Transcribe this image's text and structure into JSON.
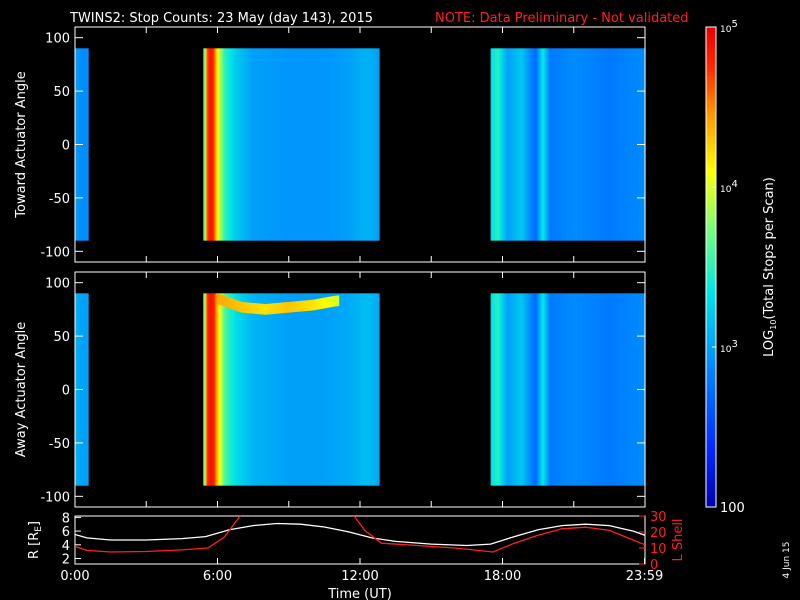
{
  "title": {
    "main": "TWINS2: Stop Counts: 23 May (day 143), 2015",
    "note": "NOTE: Data Preliminary - Not validated"
  },
  "stamp": "4 Jun 15",
  "colors": {
    "background": "#000000",
    "axis": "#ffffff",
    "note": "#ff2020",
    "r_line": "#ffffff",
    "lshell_line": "#ff2020"
  },
  "chart_data": [
    {
      "type": "heatmap",
      "panel": "toward",
      "ylabel": "Toward Actuator Angle",
      "ylim": [
        -110,
        110
      ],
      "yticks": [
        "100",
        "50",
        "0",
        "-50",
        "-100"
      ],
      "ytick_values": [
        100,
        50,
        0,
        -50,
        -100
      ],
      "xlim_hours": [
        0,
        24
      ],
      "segments_hours": [
        [
          0.0,
          0.55
        ],
        [
          5.4,
          12.8
        ],
        [
          17.5,
          24.0
        ]
      ],
      "angle_range": [
        -90,
        90
      ],
      "log_counts_profile": {
        "hours": [
          0.0,
          0.3,
          5.4,
          5.55,
          5.7,
          5.85,
          6.0,
          6.3,
          6.8,
          7.5,
          9.0,
          10.5,
          11.5,
          12.3,
          12.8,
          17.5,
          17.8,
          18.2,
          18.8,
          19.4,
          19.7,
          20.0,
          21.0,
          22.5,
          24.0
        ],
        "log10_counts": [
          3.0,
          2.9,
          3.2,
          4.6,
          4.9,
          4.7,
          4.1,
          3.5,
          3.2,
          3.0,
          2.95,
          2.95,
          3.0,
          3.1,
          3.0,
          3.3,
          3.5,
          3.0,
          3.2,
          2.7,
          3.4,
          2.8,
          2.9,
          2.8,
          2.9
        ]
      }
    },
    {
      "type": "heatmap",
      "panel": "away",
      "ylabel": "Away Actuator Angle",
      "ylim": [
        -110,
        110
      ],
      "yticks": [
        "100",
        "50",
        "0",
        "-50",
        "-100"
      ],
      "ytick_values": [
        100,
        50,
        0,
        -50,
        -100
      ],
      "xlim_hours": [
        0,
        24
      ],
      "segments_hours": [
        [
          0.0,
          0.55
        ],
        [
          5.4,
          12.8
        ],
        [
          17.5,
          24.0
        ]
      ],
      "angle_range": [
        -90,
        90
      ],
      "log_counts_profile": {
        "hours": [
          0.0,
          0.3,
          5.4,
          5.55,
          5.7,
          5.85,
          6.0,
          6.3,
          6.8,
          7.5,
          9.0,
          10.5,
          11.5,
          12.3,
          12.8,
          17.5,
          17.8,
          18.2,
          18.8,
          19.4,
          19.7,
          20.0,
          21.0,
          22.5,
          24.0
        ],
        "log10_counts": [
          3.1,
          3.0,
          3.3,
          4.7,
          4.9,
          4.8,
          4.3,
          3.6,
          3.3,
          3.1,
          3.0,
          3.0,
          3.05,
          3.15,
          3.05,
          3.3,
          3.5,
          3.0,
          3.2,
          2.7,
          3.4,
          2.8,
          2.9,
          2.8,
          2.9
        ]
      },
      "hot_band": {
        "hours": [
          6.0,
          7.0,
          8.0,
          9.0,
          10.0,
          11.0
        ],
        "angles": [
          88,
          80,
          78,
          80,
          82,
          86
        ],
        "log10_counts": [
          4.4,
          4.3,
          4.2,
          4.3,
          4.2,
          4.0
        ]
      }
    },
    {
      "type": "line",
      "panel": "orbit",
      "xlabel": "Time (UT)",
      "xticks": [
        "0:00",
        "6:00",
        "12:00",
        "18:00",
        "23:59"
      ],
      "xtick_values": [
        0,
        6,
        12,
        18,
        23.98
      ],
      "xlim": [
        0,
        24
      ],
      "ylabel_left": "R [R_E]",
      "ylabel_right": "L Shell",
      "yticks_left": [
        "2",
        "4",
        "6",
        "8"
      ],
      "ytick_left_values": [
        2,
        4,
        6,
        8
      ],
      "yticks_right": [
        "0",
        "10",
        "20",
        "30"
      ],
      "ytick_right_values": [
        0,
        10,
        20,
        30
      ],
      "ylim_left": [
        1.2,
        8.2
      ],
      "ylim_right": [
        0,
        30
      ],
      "series": [
        {
          "name": "R",
          "axis": "left",
          "x": [
            0.0,
            0.5,
            1.5,
            3.0,
            4.5,
            5.5,
            6.5,
            7.5,
            8.5,
            9.5,
            10.5,
            11.5,
            12.5,
            13.5,
            15.0,
            16.5,
            17.5,
            18.5,
            19.5,
            20.5,
            21.5,
            22.5,
            23.5,
            24.0
          ],
          "y": [
            5.5,
            5.0,
            4.7,
            4.7,
            4.9,
            5.2,
            6.2,
            6.8,
            7.1,
            7.0,
            6.6,
            5.9,
            5.0,
            4.5,
            4.1,
            3.9,
            4.1,
            5.2,
            6.2,
            6.8,
            7.0,
            6.8,
            6.0,
            5.4
          ]
        },
        {
          "name": "L Shell",
          "axis": "right",
          "x": [
            0.0,
            0.5,
            1.5,
            3.0,
            4.5,
            5.6,
            6.3,
            7.0,
            11.7,
            12.2,
            12.9,
            14.5,
            16.0,
            17.6,
            18.5,
            19.5,
            20.5,
            21.5,
            22.5,
            23.5,
            24.0
          ],
          "y": [
            11,
            8.5,
            7.5,
            7.8,
            8.8,
            10,
            17,
            31,
            31,
            21,
            13,
            11.5,
            10,
            7.5,
            13,
            18,
            22,
            23,
            21,
            15,
            12
          ]
        }
      ]
    }
  ],
  "colorbar": {
    "label": "LOG10(Total Stops per Scan)",
    "label_prefix": "LOG",
    "label_sub": "10",
    "label_suffix": "(Total Stops per Scan)",
    "range_log10": [
      2,
      5
    ],
    "ticks": [
      {
        "value": 2,
        "text": "100",
        "base": "",
        "exp": ""
      },
      {
        "value": 3,
        "text": "",
        "base": "10",
        "exp": "3"
      },
      {
        "value": 4,
        "text": "",
        "base": "10",
        "exp": "4"
      },
      {
        "value": 5,
        "text": "",
        "base": "10",
        "exp": "5"
      }
    ]
  }
}
